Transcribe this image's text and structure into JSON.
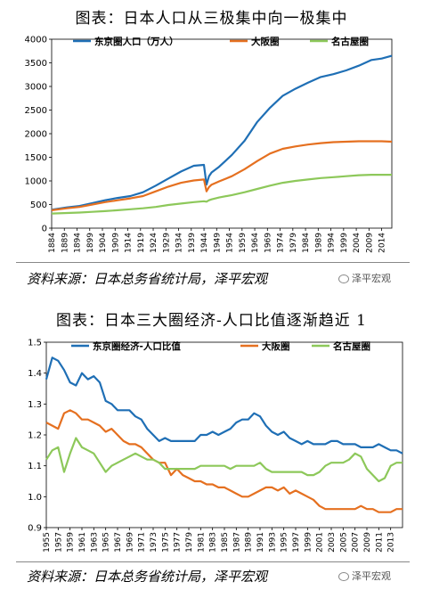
{
  "panel1": {
    "title": "图表：日本人口从三极集中向一极集中",
    "source": "资料来源：日本总务省统计局，泽平宏观",
    "watermark": "泽平宏观"
  },
  "panel2": {
    "title": "图表：日本三大圈经济-人口比值逐渐趋近 1",
    "source": "资料来源：日本总务省统计局，泽平宏观",
    "watermark": "泽平宏观"
  },
  "colors": {
    "tokyo": "#1f6fb5",
    "osaka": "#e57020",
    "nagoya": "#8dc85a"
  },
  "chart_data": [
    {
      "type": "line",
      "title": "图表：日本人口从三极集中向一极集中",
      "ylim": [
        0,
        4000
      ],
      "yticks": [
        0,
        500,
        1000,
        1500,
        2000,
        2500,
        3000,
        3500,
        4000
      ],
      "xlim": [
        1884,
        2018
      ],
      "xtick_labels": [
        "1884",
        "1889",
        "1894",
        "1899",
        "1904",
        "1909",
        "1914",
        "1919",
        "1924",
        "1929",
        "1934",
        "1939",
        "1944",
        "1949",
        "1954",
        "1959",
        "1964",
        "1969",
        "1974",
        "1979",
        "1984",
        "1989",
        "1994",
        "1999",
        "2004",
        "2009",
        "2014"
      ],
      "legend": "top",
      "series": [
        {
          "name": "东京圈人口（万人）",
          "color": "#1f6fb5",
          "x": [
            1884,
            1890,
            1895,
            1900,
            1905,
            1910,
            1915,
            1920,
            1925,
            1930,
            1935,
            1940,
            1944,
            1945,
            1946,
            1947,
            1950,
            1955,
            1960,
            1965,
            1970,
            1975,
            1980,
            1985,
            1990,
            1995,
            2000,
            2005,
            2010,
            2014,
            2018
          ],
          "y": [
            390,
            440,
            470,
            530,
            590,
            640,
            680,
            760,
            900,
            1050,
            1200,
            1320,
            1340,
            920,
            1100,
            1180,
            1300,
            1550,
            1850,
            2250,
            2550,
            2800,
            2950,
            3080,
            3200,
            3260,
            3340,
            3440,
            3560,
            3590,
            3650
          ]
        },
        {
          "name": "大阪圈",
          "color": "#e57020",
          "x": [
            1884,
            1890,
            1895,
            1900,
            1905,
            1910,
            1915,
            1920,
            1925,
            1930,
            1935,
            1940,
            1944,
            1945,
            1946,
            1947,
            1950,
            1955,
            1960,
            1965,
            1970,
            1975,
            1980,
            1985,
            1990,
            1995,
            2000,
            2005,
            2010,
            2014,
            2018
          ],
          "y": [
            380,
            420,
            450,
            500,
            550,
            590,
            630,
            680,
            780,
            880,
            960,
            1010,
            1030,
            780,
            870,
            920,
            990,
            1100,
            1250,
            1420,
            1580,
            1680,
            1730,
            1770,
            1800,
            1820,
            1830,
            1840,
            1840,
            1840,
            1830
          ]
        },
        {
          "name": "名古屋圈",
          "color": "#8dc85a",
          "x": [
            1884,
            1890,
            1895,
            1900,
            1905,
            1910,
            1915,
            1920,
            1925,
            1930,
            1935,
            1940,
            1944,
            1945,
            1946,
            1947,
            1950,
            1955,
            1960,
            1965,
            1970,
            1975,
            1980,
            1985,
            1990,
            1995,
            2000,
            2005,
            2010,
            2014,
            2018
          ],
          "y": [
            310,
            320,
            330,
            345,
            360,
            380,
            400,
            420,
            450,
            490,
            520,
            550,
            570,
            560,
            590,
            610,
            650,
            700,
            760,
            830,
            900,
            960,
            1000,
            1030,
            1060,
            1080,
            1100,
            1120,
            1130,
            1130,
            1130
          ]
        }
      ]
    },
    {
      "type": "line",
      "title": "图表：日本三大圈经济-人口比值逐渐趋近 1",
      "ylim": [
        0.9,
        1.5
      ],
      "ytick_labels": [
        "0.9",
        "1.0",
        "1.1",
        "1.2",
        "1.3",
        "1.4",
        "1.5"
      ],
      "xlim": [
        1955,
        2015
      ],
      "xtick_labels": [
        "1955",
        "1957",
        "1959",
        "1961",
        "1963",
        "1965",
        "1967",
        "1969",
        "1971",
        "1973",
        "1975",
        "1977",
        "1979",
        "1981",
        "1983",
        "1985",
        "1987",
        "1989",
        "1991",
        "1993",
        "1995",
        "1997",
        "1999",
        "2001",
        "2003",
        "2005",
        "2007",
        "2009",
        "2011",
        "2013"
      ],
      "legend": "top",
      "series": [
        {
          "name": "东京圈经济-人口比值",
          "color": "#1f6fb5",
          "x": [
            1955,
            1956,
            1957,
            1958,
            1959,
            1960,
            1961,
            1962,
            1963,
            1964,
            1965,
            1966,
            1967,
            1968,
            1969,
            1970,
            1971,
            1972,
            1973,
            1974,
            1975,
            1976,
            1977,
            1978,
            1979,
            1980,
            1981,
            1982,
            1983,
            1984,
            1985,
            1986,
            1987,
            1988,
            1989,
            1990,
            1991,
            1992,
            1993,
            1994,
            1995,
            1996,
            1997,
            1998,
            1999,
            2000,
            2001,
            2002,
            2003,
            2004,
            2005,
            2006,
            2007,
            2008,
            2009,
            2010,
            2011,
            2012,
            2013,
            2014,
            2015
          ],
          "y": [
            1.38,
            1.45,
            1.44,
            1.41,
            1.37,
            1.36,
            1.4,
            1.38,
            1.39,
            1.37,
            1.31,
            1.3,
            1.28,
            1.28,
            1.28,
            1.26,
            1.25,
            1.22,
            1.2,
            1.18,
            1.19,
            1.18,
            1.18,
            1.18,
            1.18,
            1.18,
            1.2,
            1.2,
            1.21,
            1.2,
            1.21,
            1.22,
            1.24,
            1.25,
            1.25,
            1.27,
            1.26,
            1.23,
            1.21,
            1.2,
            1.21,
            1.19,
            1.18,
            1.17,
            1.18,
            1.17,
            1.17,
            1.17,
            1.18,
            1.18,
            1.17,
            1.17,
            1.17,
            1.16,
            1.16,
            1.16,
            1.17,
            1.16,
            1.15,
            1.15,
            1.14
          ]
        },
        {
          "name": "大阪圈",
          "color": "#e57020",
          "x": [
            1955,
            1956,
            1957,
            1958,
            1959,
            1960,
            1961,
            1962,
            1963,
            1964,
            1965,
            1966,
            1967,
            1968,
            1969,
            1970,
            1971,
            1972,
            1973,
            1974,
            1975,
            1976,
            1977,
            1978,
            1979,
            1980,
            1981,
            1982,
            1983,
            1984,
            1985,
            1986,
            1987,
            1988,
            1989,
            1990,
            1991,
            1992,
            1993,
            1994,
            1995,
            1996,
            1997,
            1998,
            1999,
            2000,
            2001,
            2002,
            2003,
            2004,
            2005,
            2006,
            2007,
            2008,
            2009,
            2010,
            2011,
            2012,
            2013,
            2014,
            2015
          ],
          "y": [
            1.24,
            1.23,
            1.22,
            1.27,
            1.28,
            1.27,
            1.25,
            1.25,
            1.24,
            1.23,
            1.21,
            1.22,
            1.2,
            1.18,
            1.17,
            1.17,
            1.16,
            1.14,
            1.12,
            1.11,
            1.11,
            1.07,
            1.09,
            1.07,
            1.06,
            1.05,
            1.05,
            1.04,
            1.04,
            1.03,
            1.03,
            1.02,
            1.01,
            1.0,
            1.0,
            1.01,
            1.02,
            1.03,
            1.03,
            1.02,
            1.03,
            1.01,
            1.02,
            1.01,
            1.0,
            0.99,
            0.97,
            0.96,
            0.96,
            0.96,
            0.96,
            0.96,
            0.96,
            0.97,
            0.96,
            0.96,
            0.95,
            0.95,
            0.95,
            0.96,
            0.96
          ]
        },
        {
          "name": "名古屋圈",
          "color": "#8dc85a",
          "x": [
            1955,
            1956,
            1957,
            1958,
            1959,
            1960,
            1961,
            1962,
            1963,
            1964,
            1965,
            1966,
            1967,
            1968,
            1969,
            1970,
            1971,
            1972,
            1973,
            1974,
            1975,
            1976,
            1977,
            1978,
            1979,
            1980,
            1981,
            1982,
            1983,
            1984,
            1985,
            1986,
            1987,
            1988,
            1989,
            1990,
            1991,
            1992,
            1993,
            1994,
            1995,
            1996,
            1997,
            1998,
            1999,
            2000,
            2001,
            2002,
            2003,
            2004,
            2005,
            2006,
            2007,
            2008,
            2009,
            2010,
            2011,
            2012,
            2013,
            2014,
            2015
          ],
          "y": [
            1.12,
            1.15,
            1.16,
            1.08,
            1.14,
            1.19,
            1.16,
            1.15,
            1.14,
            1.11,
            1.08,
            1.1,
            1.11,
            1.12,
            1.13,
            1.14,
            1.13,
            1.12,
            1.12,
            1.11,
            1.09,
            1.09,
            1.09,
            1.09,
            1.09,
            1.09,
            1.1,
            1.1,
            1.1,
            1.1,
            1.1,
            1.09,
            1.1,
            1.1,
            1.1,
            1.1,
            1.11,
            1.09,
            1.08,
            1.08,
            1.08,
            1.08,
            1.08,
            1.08,
            1.07,
            1.07,
            1.08,
            1.1,
            1.11,
            1.11,
            1.11,
            1.12,
            1.14,
            1.13,
            1.09,
            1.07,
            1.05,
            1.06,
            1.1,
            1.11,
            1.11
          ]
        }
      ]
    }
  ]
}
